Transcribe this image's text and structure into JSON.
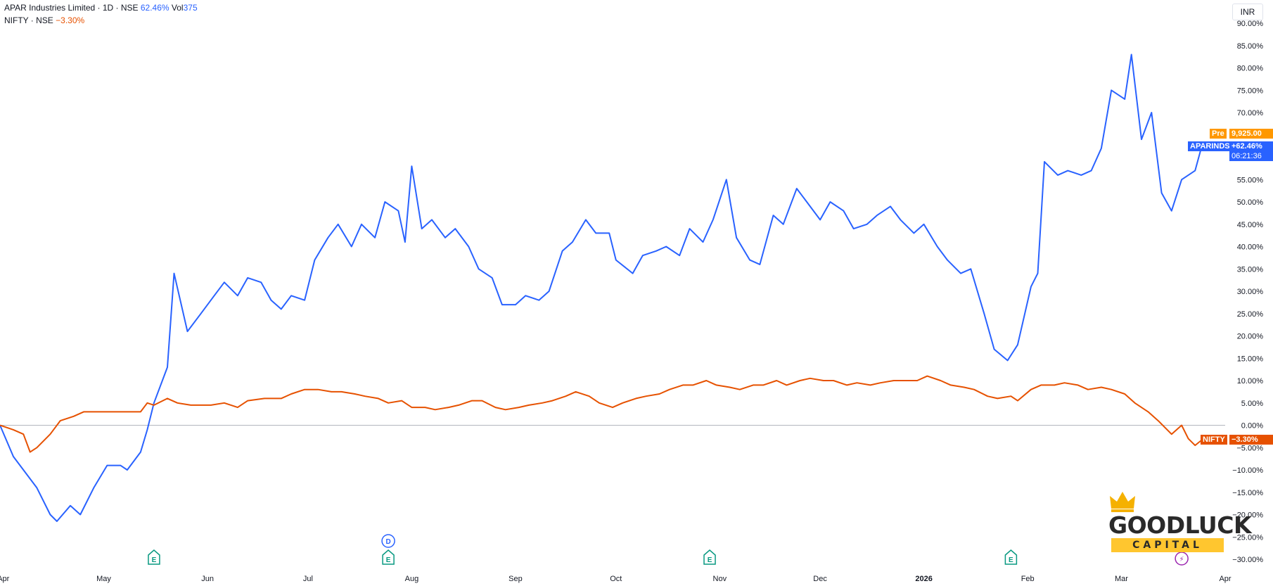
{
  "legend": {
    "main": {
      "name": "APAR Industries Limited · 1D · NSE",
      "change": "62.46%",
      "vol_label": "Vol",
      "vol_value": "375"
    },
    "compare": {
      "name": "NIFTY · NSE",
      "change": "−3.30%"
    }
  },
  "currency": "INR",
  "tags": {
    "pre_label": "Pre",
    "pre_value": "9,925.00",
    "main_symbol": "APARINDS",
    "main_pct": "+62.46%",
    "main_time": "06:21:36",
    "compare_symbol": "NIFTY",
    "compare_pct": "−3.30%"
  },
  "events": [
    {
      "type": "E",
      "label": "E",
      "date": "2025-05-16"
    },
    {
      "type": "D",
      "label": "D",
      "date": "2025-07-25"
    },
    {
      "type": "E",
      "label": "E",
      "date": "2025-07-25"
    },
    {
      "type": "E",
      "label": "E",
      "date": "2025-10-29"
    },
    {
      "type": "E",
      "label": "E",
      "date": "2026-01-27"
    },
    {
      "type": "bolt",
      "label": "⚡",
      "date": "2026-03-19"
    }
  ],
  "logo": {
    "text": "GOODLUCK",
    "band": "CAPITAL"
  },
  "colors": {
    "main": "#2962ff",
    "compare": "#e65100",
    "pre": "#ff9800",
    "grid_zero": "#b2b5be"
  },
  "chart_data": {
    "type": "line",
    "x_type": "date",
    "y_unit": "percent change",
    "ylim": [
      -30,
      90
    ],
    "xlim": [
      "2025-03-31",
      "2026-04-01"
    ],
    "y_ticks": [
      90,
      85,
      80,
      75,
      70,
      65,
      60,
      55,
      50,
      45,
      40,
      35,
      30,
      25,
      20,
      15,
      10,
      5,
      0,
      -5,
      -10,
      -15,
      -20,
      -25,
      -30
    ],
    "y_tick_labels": [
      "90.00%",
      "85.00%",
      "80.00%",
      "75.00%",
      "70.00%",
      "65.00%",
      "60.00%",
      "55.00%",
      "50.00%",
      "45.00%",
      "40.00%",
      "35.00%",
      "30.00%",
      "25.00%",
      "20.00%",
      "15.00%",
      "10.00%",
      "5.00%",
      "0.00%",
      "−5.00%",
      "−10.00%",
      "−15.00%",
      "−20.00%",
      "−25.00%",
      "−30.00%"
    ],
    "x_ticks": [
      "2025-04-01",
      "2025-05-01",
      "2025-06-01",
      "2025-07-01",
      "2025-08-01",
      "2025-09-01",
      "2025-10-01",
      "2025-11-01",
      "2025-12-01",
      "2026-01-01",
      "2026-02-01",
      "2026-03-01",
      "2026-04-01"
    ],
    "x_tick_labels": [
      "Apr",
      "May",
      "Jun",
      "Jul",
      "Aug",
      "Sep",
      "Oct",
      "Nov",
      "Dec",
      "2026",
      "Feb",
      "Mar",
      "Apr"
    ],
    "grid": false,
    "series": [
      {
        "name": "APARINDS",
        "points": [
          [
            "2025-03-31",
            0
          ],
          [
            "2025-04-04",
            -7
          ],
          [
            "2025-04-08",
            -11
          ],
          [
            "2025-04-11",
            -14
          ],
          [
            "2025-04-15",
            -20
          ],
          [
            "2025-04-17",
            -21.5
          ],
          [
            "2025-04-21",
            -18
          ],
          [
            "2025-04-24",
            -20
          ],
          [
            "2025-04-28",
            -14
          ],
          [
            "2025-05-02",
            -9
          ],
          [
            "2025-05-06",
            -9
          ],
          [
            "2025-05-08",
            -10
          ],
          [
            "2025-05-12",
            -6
          ],
          [
            "2025-05-14",
            -1
          ],
          [
            "2025-05-16",
            5
          ],
          [
            "2025-05-20",
            13
          ],
          [
            "2025-05-22",
            34
          ],
          [
            "2025-05-26",
            21
          ],
          [
            "2025-05-30",
            25
          ],
          [
            "2025-06-03",
            29
          ],
          [
            "2025-06-06",
            32
          ],
          [
            "2025-06-10",
            29
          ],
          [
            "2025-06-13",
            33
          ],
          [
            "2025-06-17",
            32
          ],
          [
            "2025-06-20",
            28
          ],
          [
            "2025-06-23",
            26
          ],
          [
            "2025-06-26",
            29
          ],
          [
            "2025-06-30",
            28
          ],
          [
            "2025-07-03",
            37
          ],
          [
            "2025-07-07",
            42
          ],
          [
            "2025-07-10",
            45
          ],
          [
            "2025-07-14",
            40
          ],
          [
            "2025-07-17",
            45
          ],
          [
            "2025-07-21",
            42
          ],
          [
            "2025-07-24",
            50
          ],
          [
            "2025-07-28",
            48
          ],
          [
            "2025-07-30",
            41
          ],
          [
            "2025-08-01",
            58
          ],
          [
            "2025-08-04",
            44
          ],
          [
            "2025-08-07",
            46
          ],
          [
            "2025-08-11",
            42
          ],
          [
            "2025-08-14",
            44
          ],
          [
            "2025-08-18",
            40
          ],
          [
            "2025-08-21",
            35
          ],
          [
            "2025-08-25",
            33
          ],
          [
            "2025-08-28",
            27
          ],
          [
            "2025-09-01",
            27
          ],
          [
            "2025-09-04",
            29
          ],
          [
            "2025-09-08",
            28
          ],
          [
            "2025-09-11",
            30
          ],
          [
            "2025-09-15",
            39
          ],
          [
            "2025-09-18",
            41
          ],
          [
            "2025-09-22",
            46
          ],
          [
            "2025-09-25",
            43
          ],
          [
            "2025-09-29",
            43
          ],
          [
            "2025-10-01",
            37
          ],
          [
            "2025-10-06",
            34
          ],
          [
            "2025-10-09",
            38
          ],
          [
            "2025-10-13",
            39
          ],
          [
            "2025-10-16",
            40
          ],
          [
            "2025-10-20",
            38
          ],
          [
            "2025-10-23",
            44
          ],
          [
            "2025-10-27",
            41
          ],
          [
            "2025-10-30",
            46
          ],
          [
            "2025-11-03",
            55
          ],
          [
            "2025-11-06",
            42
          ],
          [
            "2025-11-10",
            37
          ],
          [
            "2025-11-13",
            36
          ],
          [
            "2025-11-17",
            47
          ],
          [
            "2025-11-20",
            45
          ],
          [
            "2025-11-24",
            53
          ],
          [
            "2025-11-27",
            50
          ],
          [
            "2025-12-01",
            46
          ],
          [
            "2025-12-04",
            50
          ],
          [
            "2025-12-08",
            48
          ],
          [
            "2025-12-11",
            44
          ],
          [
            "2025-12-15",
            45
          ],
          [
            "2025-12-18",
            47
          ],
          [
            "2025-12-22",
            49
          ],
          [
            "2025-12-25",
            46
          ],
          [
            "2025-12-29",
            43
          ],
          [
            "2026-01-01",
            45
          ],
          [
            "2026-01-05",
            40
          ],
          [
            "2026-01-08",
            37
          ],
          [
            "2026-01-12",
            34
          ],
          [
            "2026-01-15",
            35
          ],
          [
            "2026-01-19",
            25
          ],
          [
            "2026-01-22",
            17
          ],
          [
            "2026-01-26",
            14.5
          ],
          [
            "2026-01-29",
            18
          ],
          [
            "2026-02-02",
            31
          ],
          [
            "2026-02-04",
            34
          ],
          [
            "2026-02-06",
            59
          ],
          [
            "2026-02-10",
            56
          ],
          [
            "2026-02-13",
            57
          ],
          [
            "2026-02-17",
            56
          ],
          [
            "2026-02-20",
            57
          ],
          [
            "2026-02-23",
            62
          ],
          [
            "2026-02-26",
            75
          ],
          [
            "2026-03-02",
            73
          ],
          [
            "2026-03-04",
            83
          ],
          [
            "2026-03-07",
            64
          ],
          [
            "2026-03-10",
            70
          ],
          [
            "2026-03-13",
            52
          ],
          [
            "2026-03-16",
            48
          ],
          [
            "2026-03-19",
            55
          ],
          [
            "2026-03-23",
            57
          ],
          [
            "2026-03-25",
            62.46
          ]
        ]
      },
      {
        "name": "NIFTY",
        "points": [
          [
            "2025-03-31",
            0
          ],
          [
            "2025-04-04",
            -1
          ],
          [
            "2025-04-07",
            -2
          ],
          [
            "2025-04-09",
            -6
          ],
          [
            "2025-04-11",
            -5
          ],
          [
            "2025-04-15",
            -2
          ],
          [
            "2025-04-18",
            1
          ],
          [
            "2025-04-22",
            2
          ],
          [
            "2025-04-25",
            3
          ],
          [
            "2025-05-02",
            3
          ],
          [
            "2025-05-08",
            3
          ],
          [
            "2025-05-12",
            3
          ],
          [
            "2025-05-14",
            5
          ],
          [
            "2025-05-16",
            4.5
          ],
          [
            "2025-05-20",
            6
          ],
          [
            "2025-05-23",
            5
          ],
          [
            "2025-05-27",
            4.5
          ],
          [
            "2025-06-02",
            4.5
          ],
          [
            "2025-06-06",
            5
          ],
          [
            "2025-06-10",
            4
          ],
          [
            "2025-06-13",
            5.5
          ],
          [
            "2025-06-18",
            6
          ],
          [
            "2025-06-23",
            6
          ],
          [
            "2025-06-26",
            7
          ],
          [
            "2025-06-30",
            8
          ],
          [
            "2025-07-04",
            8
          ],
          [
            "2025-07-08",
            7.5
          ],
          [
            "2025-07-11",
            7.5
          ],
          [
            "2025-07-15",
            7
          ],
          [
            "2025-07-18",
            6.5
          ],
          [
            "2025-07-22",
            6
          ],
          [
            "2025-07-25",
            5
          ],
          [
            "2025-07-29",
            5.5
          ],
          [
            "2025-08-01",
            4
          ],
          [
            "2025-08-05",
            4
          ],
          [
            "2025-08-08",
            3.5
          ],
          [
            "2025-08-12",
            4
          ],
          [
            "2025-08-15",
            4.5
          ],
          [
            "2025-08-19",
            5.5
          ],
          [
            "2025-08-22",
            5.5
          ],
          [
            "2025-08-26",
            4
          ],
          [
            "2025-08-29",
            3.5
          ],
          [
            "2025-09-02",
            4
          ],
          [
            "2025-09-05",
            4.5
          ],
          [
            "2025-09-09",
            5
          ],
          [
            "2025-09-12",
            5.5
          ],
          [
            "2025-09-16",
            6.5
          ],
          [
            "2025-09-19",
            7.5
          ],
          [
            "2025-09-23",
            6.5
          ],
          [
            "2025-09-26",
            5
          ],
          [
            "2025-09-30",
            4
          ],
          [
            "2025-10-03",
            5
          ],
          [
            "2025-10-07",
            6
          ],
          [
            "2025-10-10",
            6.5
          ],
          [
            "2025-10-14",
            7
          ],
          [
            "2025-10-17",
            8
          ],
          [
            "2025-10-21",
            9
          ],
          [
            "2025-10-24",
            9
          ],
          [
            "2025-10-28",
            10
          ],
          [
            "2025-10-31",
            9
          ],
          [
            "2025-11-04",
            8.5
          ],
          [
            "2025-11-07",
            8
          ],
          [
            "2025-11-11",
            9
          ],
          [
            "2025-11-14",
            9
          ],
          [
            "2025-11-18",
            10
          ],
          [
            "2025-11-21",
            9
          ],
          [
            "2025-11-25",
            10
          ],
          [
            "2025-11-28",
            10.5
          ],
          [
            "2025-12-02",
            10
          ],
          [
            "2025-12-05",
            10
          ],
          [
            "2025-12-09",
            9
          ],
          [
            "2025-12-12",
            9.5
          ],
          [
            "2025-12-16",
            9
          ],
          [
            "2025-12-19",
            9.5
          ],
          [
            "2025-12-23",
            10
          ],
          [
            "2025-12-26",
            10
          ],
          [
            "2025-12-30",
            10
          ],
          [
            "2026-01-02",
            11
          ],
          [
            "2026-01-06",
            10
          ],
          [
            "2026-01-09",
            9
          ],
          [
            "2026-01-13",
            8.5
          ],
          [
            "2026-01-16",
            8
          ],
          [
            "2026-01-20",
            6.5
          ],
          [
            "2026-01-23",
            6
          ],
          [
            "2026-01-27",
            6.5
          ],
          [
            "2026-01-29",
            5.5
          ],
          [
            "2026-02-02",
            8
          ],
          [
            "2026-02-05",
            9
          ],
          [
            "2026-02-09",
            9
          ],
          [
            "2026-02-12",
            9.5
          ],
          [
            "2026-02-16",
            9
          ],
          [
            "2026-02-19",
            8
          ],
          [
            "2026-02-23",
            8.5
          ],
          [
            "2026-02-26",
            8
          ],
          [
            "2026-03-02",
            7
          ],
          [
            "2026-03-05",
            5
          ],
          [
            "2026-03-09",
            3
          ],
          [
            "2026-03-12",
            1
          ],
          [
            "2026-03-16",
            -2
          ],
          [
            "2026-03-19",
            0
          ],
          [
            "2026-03-21",
            -3
          ],
          [
            "2026-03-23",
            -4.5
          ],
          [
            "2026-03-25",
            -3.3
          ]
        ]
      }
    ]
  }
}
